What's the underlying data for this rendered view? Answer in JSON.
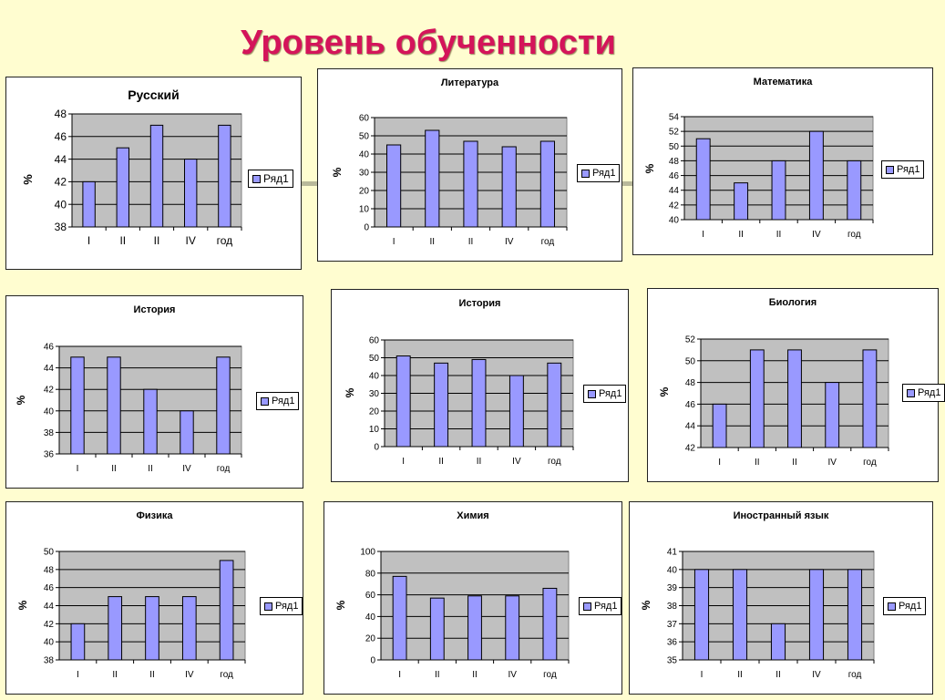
{
  "slide": {
    "title": "Уровень обученности"
  },
  "legend_label": "Ряд1",
  "ylabel": "%",
  "chart_data": [
    {
      "id": "russian",
      "type": "bar",
      "title": "Русский",
      "ylabel": "%",
      "categories": [
        "I",
        "II",
        "II",
        "IV",
        "год"
      ],
      "series": [
        {
          "name": "Ряд1",
          "values": [
            42,
            45,
            47,
            44,
            47
          ]
        }
      ],
      "ylim": [
        38,
        48
      ],
      "yticks": [
        38,
        40,
        42,
        44,
        46,
        48
      ],
      "grid": true,
      "legend": "right"
    },
    {
      "id": "literature",
      "type": "bar",
      "title": "Литература",
      "ylabel": "%",
      "categories": [
        "I",
        "II",
        "II",
        "IV",
        "год"
      ],
      "series": [
        {
          "name": "Ряд1",
          "values": [
            45,
            53,
            47,
            44,
            47
          ]
        }
      ],
      "ylim": [
        0,
        60
      ],
      "yticks": [
        0,
        10,
        20,
        30,
        40,
        50,
        60
      ],
      "grid": true,
      "legend": "right"
    },
    {
      "id": "math",
      "type": "bar",
      "title": "Математика",
      "ylabel": "%",
      "categories": [
        "I",
        "II",
        "II",
        "IV",
        "год"
      ],
      "series": [
        {
          "name": "Ряд1",
          "values": [
            51,
            45,
            48,
            52,
            48
          ]
        }
      ],
      "ylim": [
        40,
        54
      ],
      "yticks": [
        40,
        42,
        44,
        46,
        48,
        50,
        52,
        54
      ],
      "grid": true,
      "legend": "right"
    },
    {
      "id": "history1",
      "type": "bar",
      "title": "История",
      "ylabel": "%",
      "categories": [
        "I",
        "II",
        "II",
        "IV",
        "год"
      ],
      "series": [
        {
          "name": "Ряд1",
          "values": [
            45,
            45,
            42,
            40,
            45
          ]
        }
      ],
      "ylim": [
        36,
        46
      ],
      "yticks": [
        36,
        38,
        40,
        42,
        44,
        46
      ],
      "grid": true,
      "legend": "right"
    },
    {
      "id": "history2",
      "type": "bar",
      "title": "История",
      "ylabel": "%",
      "categories": [
        "I",
        "II",
        "II",
        "IV",
        "год"
      ],
      "series": [
        {
          "name": "Ряд1",
          "values": [
            51,
            47,
            49,
            40,
            47
          ]
        }
      ],
      "ylim": [
        0,
        60
      ],
      "yticks": [
        0,
        10,
        20,
        30,
        40,
        50,
        60
      ],
      "grid": true,
      "legend": "right"
    },
    {
      "id": "biology",
      "type": "bar",
      "title": "Биология",
      "ylabel": "%",
      "categories": [
        "I",
        "II",
        "II",
        "IV",
        "год"
      ],
      "series": [
        {
          "name": "Ряд1",
          "values": [
            46,
            51,
            51,
            48,
            51
          ]
        }
      ],
      "ylim": [
        42,
        52
      ],
      "yticks": [
        42,
        44,
        46,
        48,
        50,
        52
      ],
      "grid": true,
      "legend": "right"
    },
    {
      "id": "physics",
      "type": "bar",
      "title": "Физика",
      "ylabel": "%",
      "categories": [
        "I",
        "II",
        "II",
        "IV",
        "год"
      ],
      "series": [
        {
          "name": "Ряд1",
          "values": [
            42,
            45,
            45,
            45,
            49
          ]
        }
      ],
      "ylim": [
        38,
        50
      ],
      "yticks": [
        38,
        40,
        42,
        44,
        46,
        48,
        50
      ],
      "grid": true,
      "legend": "right"
    },
    {
      "id": "chemistry",
      "type": "bar",
      "title": "Химия",
      "ylabel": "%",
      "categories": [
        "I",
        "II",
        "II",
        "IV",
        "год"
      ],
      "series": [
        {
          "name": "Ряд1",
          "values": [
            77,
            57,
            59,
            59,
            66
          ]
        }
      ],
      "ylim": [
        0,
        100
      ],
      "yticks": [
        0,
        20,
        40,
        60,
        80,
        100
      ],
      "grid": true,
      "legend": "right"
    },
    {
      "id": "foreign",
      "type": "bar",
      "title": "Иностранный язык",
      "ylabel": "%",
      "categories": [
        "I",
        "II",
        "II",
        "IV",
        "год"
      ],
      "series": [
        {
          "name": "Ряд1",
          "values": [
            40,
            40,
            37,
            40,
            40
          ]
        }
      ],
      "ylim": [
        35,
        41
      ],
      "yticks": [
        35,
        36,
        37,
        38,
        39,
        40,
        41
      ],
      "grid": true,
      "legend": "right"
    }
  ],
  "colors": {
    "bar": "#9999ff",
    "plot_bg": "#c0c0c0",
    "title": "#d4145a",
    "background": "#fffdd0"
  }
}
